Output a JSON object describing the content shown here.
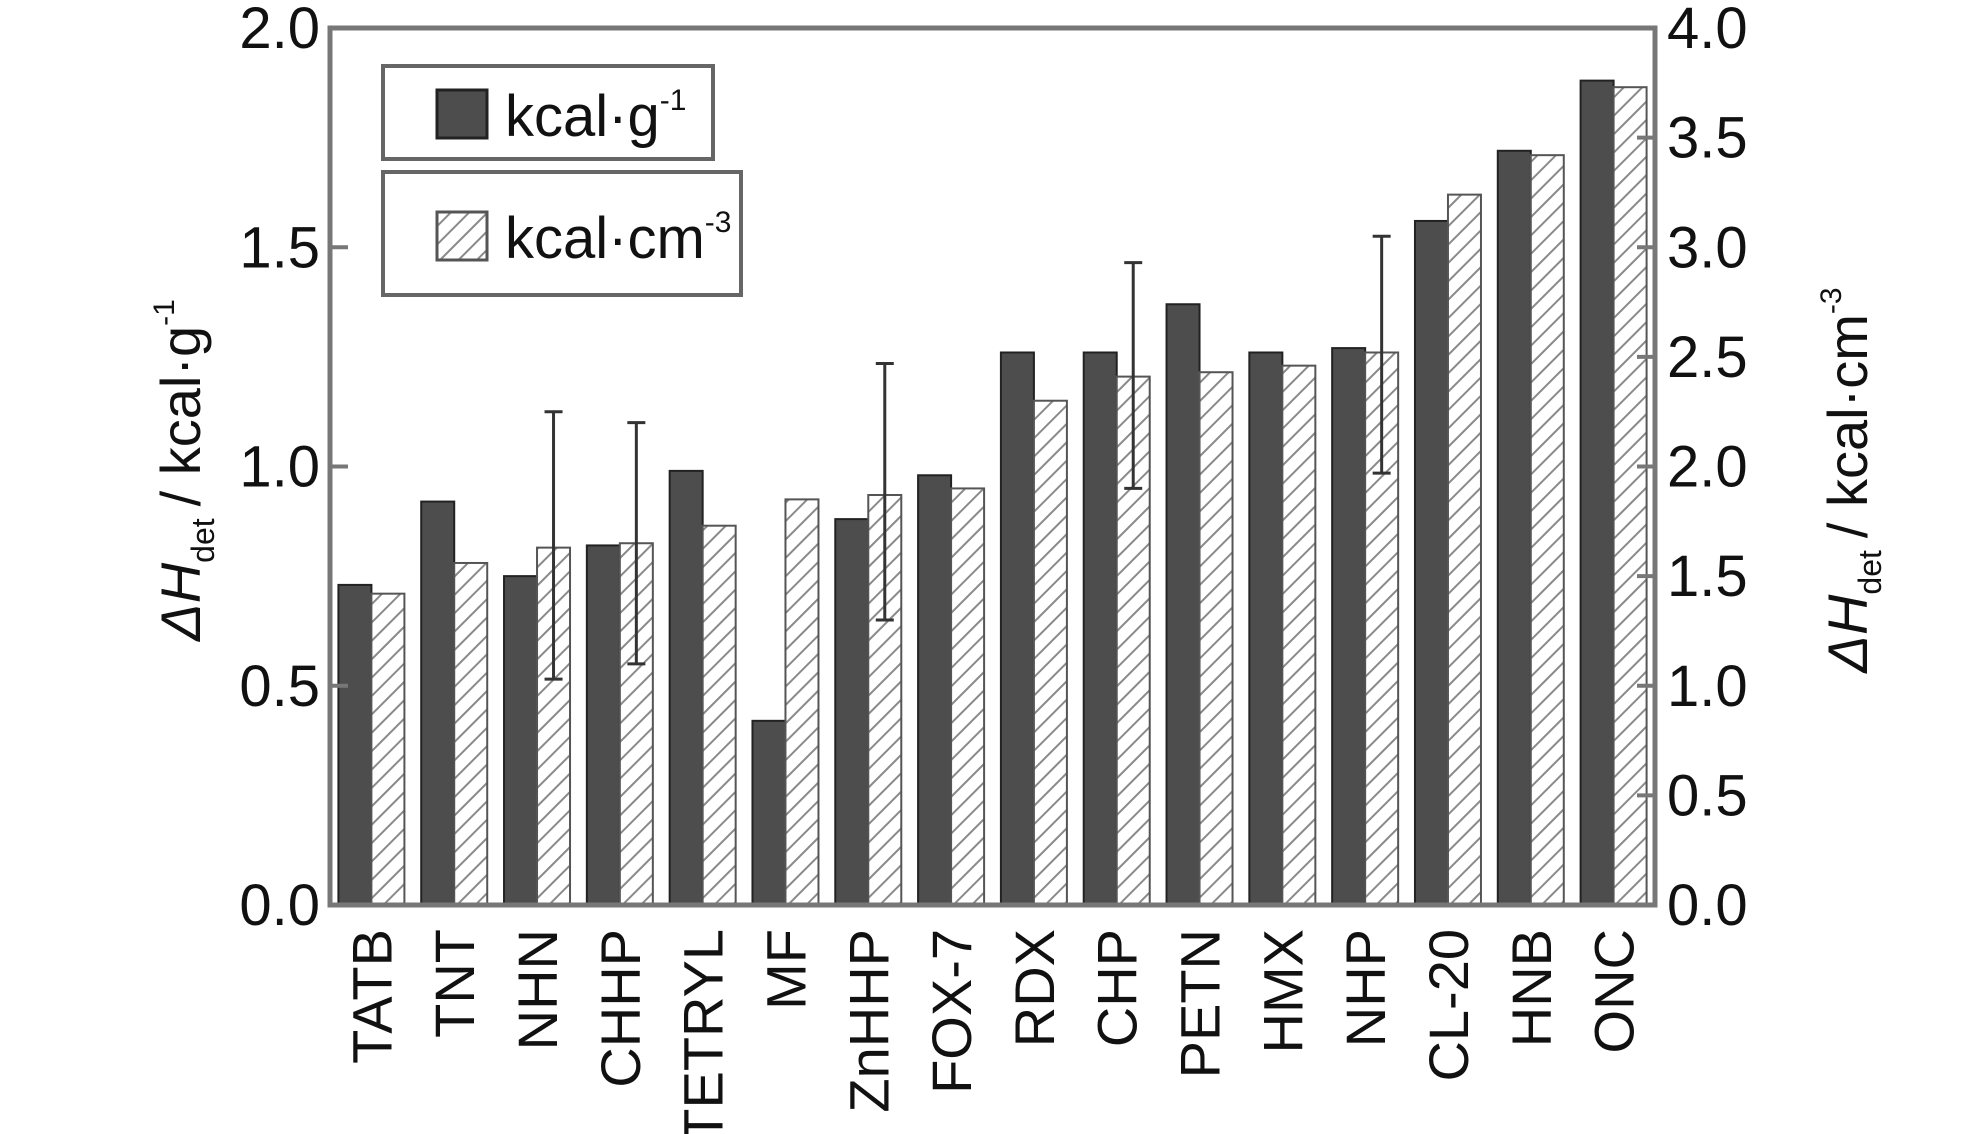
{
  "chart_data": {
    "type": "bar",
    "categories": [
      "TATB",
      "TNT",
      "NHN",
      "CHHP",
      "TETRYL",
      "MF",
      "ZnHHP",
      "FOX-7",
      "RDX",
      "CHP",
      "PETN",
      "HMX",
      "NHP",
      "CL-20",
      "HNB",
      "ONC"
    ],
    "series": [
      {
        "name": "kcal·g",
        "name_sup": "-1",
        "axis": "left",
        "color": "#4d4d4d",
        "values": [
          0.73,
          0.92,
          0.75,
          0.82,
          0.99,
          0.42,
          0.88,
          0.98,
          1.26,
          1.26,
          1.37,
          1.26,
          1.27,
          1.56,
          1.72,
          1.88
        ]
      },
      {
        "name": "kcal·cm",
        "name_sup": "-3",
        "axis": "right",
        "color": "#ffffff",
        "pattern": "hatched",
        "values": [
          1.42,
          1.56,
          1.63,
          1.65,
          1.73,
          1.85,
          1.87,
          1.9,
          2.3,
          2.41,
          2.43,
          2.46,
          2.52,
          3.24,
          3.42,
          3.73
        ],
        "errors": [
          null,
          null,
          [
            1.03,
            2.25
          ],
          [
            1.1,
            2.2
          ],
          null,
          null,
          [
            1.3,
            2.47
          ],
          null,
          null,
          [
            1.9,
            2.93
          ],
          null,
          null,
          [
            1.97,
            3.05
          ],
          null,
          null,
          null
        ]
      }
    ],
    "left_axis": {
      "label_main": "ΔH",
      "label_sub": "det",
      "label_unit": "/ kcal·g",
      "label_sup": "-1",
      "ylim": [
        0,
        2.0
      ],
      "ticks": [
        "0.0",
        "0.5",
        "1.0",
        "1.5",
        "2.0"
      ]
    },
    "right_axis": {
      "label_main": "ΔH",
      "label_sub": "det",
      "label_unit": "/ kcal·cm",
      "label_sup": "-3",
      "ylim": [
        0,
        4.0
      ],
      "ticks": [
        "0.0",
        "0.5",
        "1.0",
        "1.5",
        "2.0",
        "2.5",
        "3.0",
        "3.5",
        "4.0"
      ]
    },
    "legend": {
      "position": "top-left"
    },
    "grid": false
  }
}
